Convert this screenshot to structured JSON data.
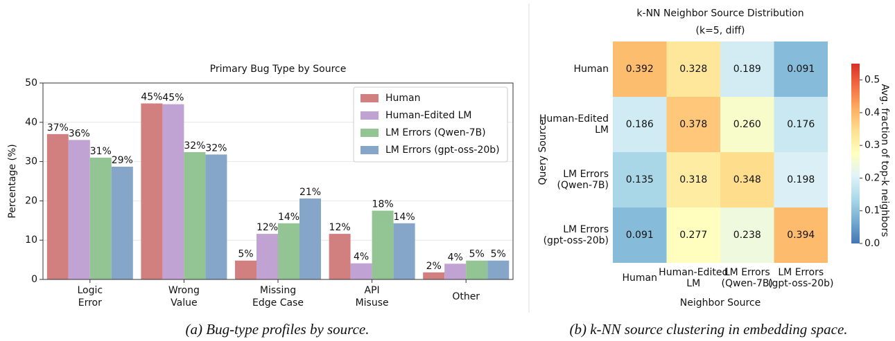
{
  "chart_data": [
    {
      "type": "bar",
      "title": "Primary Bug Type by Source",
      "ylabel": "Percentage (%)",
      "caption": "(a) Bug-type profiles by source.",
      "categories": [
        "Logic\nError",
        "Wrong\nValue",
        "Missing\nEdge Case",
        "API\nMisuse",
        "Other"
      ],
      "series": [
        {
          "name": "Human",
          "color": "#d17f7f",
          "values": [
            37,
            44.8,
            4.8,
            11.6,
            1.8
          ],
          "value_labels": [
            "37%",
            "45%",
            "5%",
            "12%",
            "2%"
          ]
        },
        {
          "name": "Human-Edited LM",
          "color": "#c0a2d3",
          "values": [
            35.5,
            44.6,
            11.6,
            4.1,
            4.0
          ],
          "value_labels": [
            "36%",
            "45%",
            "12%",
            "4%",
            "4%"
          ]
        },
        {
          "name": "LM Errors (Qwen-7B)",
          "color": "#93c493",
          "values": [
            31,
            32.4,
            14.3,
            17.5,
            4.8
          ],
          "value_labels": [
            "31%",
            "32%",
            "14%",
            "18%",
            "5%"
          ]
        },
        {
          "name": "LM Errors (gpt-oss-20b)",
          "color": "#85a6c8",
          "values": [
            28.7,
            31.8,
            20.6,
            14.3,
            4.8
          ],
          "value_labels": [
            "29%",
            "32%",
            "21%",
            "14%",
            "5%"
          ]
        }
      ],
      "ylim": [
        0,
        50
      ],
      "yticks": [
        0,
        10,
        20,
        30,
        40,
        50
      ],
      "grid": true,
      "legend": "upper right"
    },
    {
      "type": "heatmap",
      "title": "k-NN Neighbor Source Distribution\n(k=5, diff)",
      "xlabel": "Neighbor Source",
      "ylabel": "Query Source",
      "caption": "(b) k-NN source clustering in embedding space.",
      "categories": [
        "Human",
        "Human-Edited\nLM",
        "LM Errors\n(Qwen-7B)",
        "LM Errors\n(gpt-oss-20b)"
      ],
      "y_categories": [
        "Human",
        "Human-Edited\nLM",
        "LM Errors\n(Qwen-7B)",
        "LM Errors\n(gpt-oss-20b)"
      ],
      "values": [
        [
          0.392,
          0.328,
          0.189,
          0.091
        ],
        [
          0.186,
          0.378,
          0.26,
          0.176
        ],
        [
          0.135,
          0.318,
          0.348,
          0.198
        ],
        [
          0.091,
          0.277,
          0.238,
          0.394
        ]
      ],
      "value_labels": [
        [
          "0.392",
          "0.328",
          "0.189",
          "0.091"
        ],
        [
          "0.186",
          "0.378",
          "0.260",
          "0.176"
        ],
        [
          "0.135",
          "0.318",
          "0.348",
          "0.198"
        ],
        [
          "0.091",
          "0.277",
          "0.238",
          "0.394"
        ]
      ],
      "colormap": "RdYlBu_r",
      "colorbar_label": "Avg. fraction of top-k neighbors",
      "clim": [
        0,
        0.55
      ],
      "cticks": [
        {
          "value": 0,
          "label": "0.0"
        },
        0.1,
        0.2,
        0.3,
        0.4,
        0.5
      ]
    }
  ]
}
